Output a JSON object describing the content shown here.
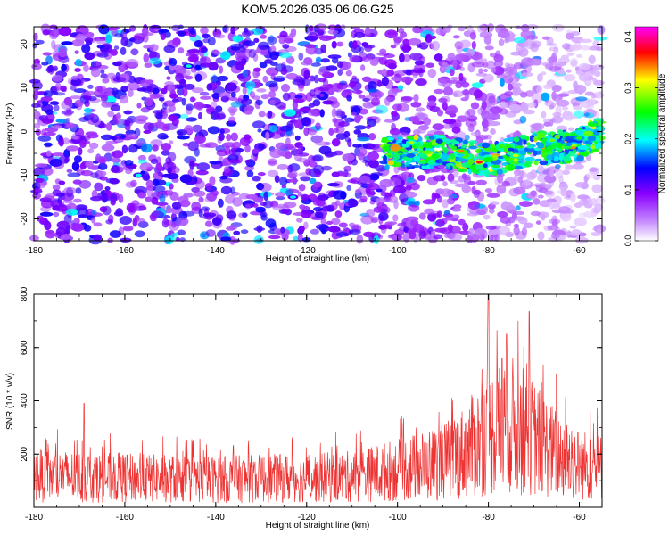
{
  "title": "KOM5.2026.035.06.06.G25",
  "chart_data": [
    {
      "type": "heatmap",
      "xlabel": "Height of straight line (km)",
      "ylabel": "Frequency (Hz)",
      "xlim": [
        -180,
        -55
      ],
      "ylim": [
        -25,
        24
      ],
      "xticks": [
        -180,
        -160,
        -140,
        -120,
        -100,
        -80,
        -60
      ],
      "yticks": [
        -20,
        -10,
        0,
        10,
        20
      ],
      "colorbar": {
        "label": "Normalized spectral amplitude",
        "range": [
          0,
          0.42
        ],
        "ticks": [
          "0.0",
          "0.1",
          "0.2",
          "0.3",
          "0.4"
        ],
        "colors": [
          "#ffffff",
          "#8a00ff",
          "#0000ff",
          "#00ffff",
          "#00ff00",
          "#ffff00",
          "#ff0000",
          "#ff00ff"
        ]
      },
      "signal_track": {
        "description_points": [
          [
            -103,
            -5
          ],
          [
            -90,
            -4.5
          ],
          [
            -80,
            -6.5
          ],
          [
            -70,
            -4
          ],
          [
            -60,
            -3
          ],
          [
            -55,
            0
          ]
        ],
        "peak_amplitude": 0.4,
        "peak_at": [
          -82,
          -7
        ]
      },
      "noise_level": 0.08,
      "grid": false
    },
    {
      "type": "line",
      "xlabel": "Height of straight line (km)",
      "ylabel": "SNR (10 * v/v)",
      "xlim": [
        -180,
        -55
      ],
      "ylim": [
        0,
        800
      ],
      "xticks": [
        -180,
        -160,
        -140,
        -120,
        -100,
        -80,
        -60
      ],
      "yticks": [
        200,
        400,
        600,
        800
      ],
      "series": [
        {
          "color": "#ee3333",
          "baseline_profile": [
            [
              -180,
              120
            ],
            [
              -160,
              110
            ],
            [
              -140,
              105
            ],
            [
              -120,
              110
            ],
            [
              -110,
              115
            ],
            [
              -100,
              140
            ],
            [
              -90,
              170
            ],
            [
              -85,
              210
            ],
            [
              -80,
              280
            ],
            [
              -75,
              310
            ],
            [
              -70,
              260
            ],
            [
              -65,
              200
            ],
            [
              -60,
              160
            ],
            [
              -55,
              150
            ]
          ],
          "spikes": [
            [
              -169,
              390
            ],
            [
              -80,
              800
            ],
            [
              -71,
              735
            ],
            [
              -76,
              650
            ],
            [
              -65,
              500
            ],
            [
              -77,
              560
            ]
          ]
        }
      ],
      "grid": false
    }
  ]
}
